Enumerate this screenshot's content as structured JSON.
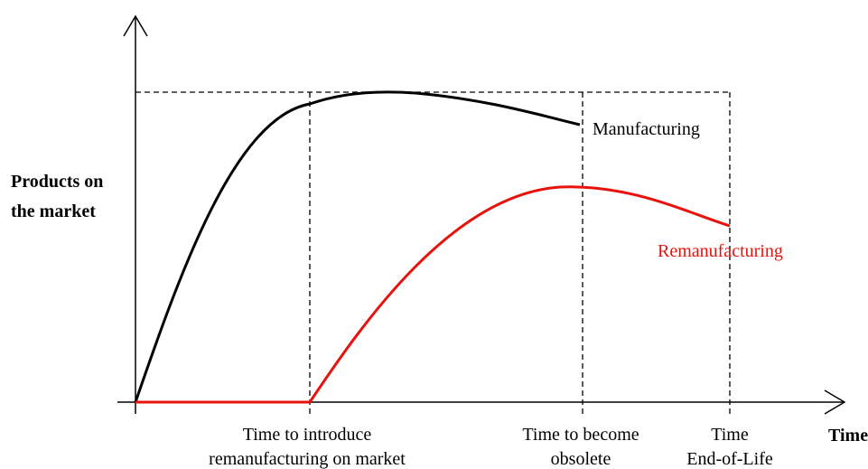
{
  "axes": {
    "y_label": [
      "Products on",
      "the market"
    ],
    "x_label": "Time"
  },
  "curves": [
    {
      "label": "Manufacturing"
    },
    {
      "label": "Remanufacturing"
    }
  ],
  "milestones": [
    {
      "label": [
        "Time to introduce",
        "remanufacturing on market"
      ]
    },
    {
      "label": [
        "Time to become",
        "obsolete"
      ]
    },
    {
      "label": [
        "Time",
        "End-of-Life"
      ]
    }
  ]
}
